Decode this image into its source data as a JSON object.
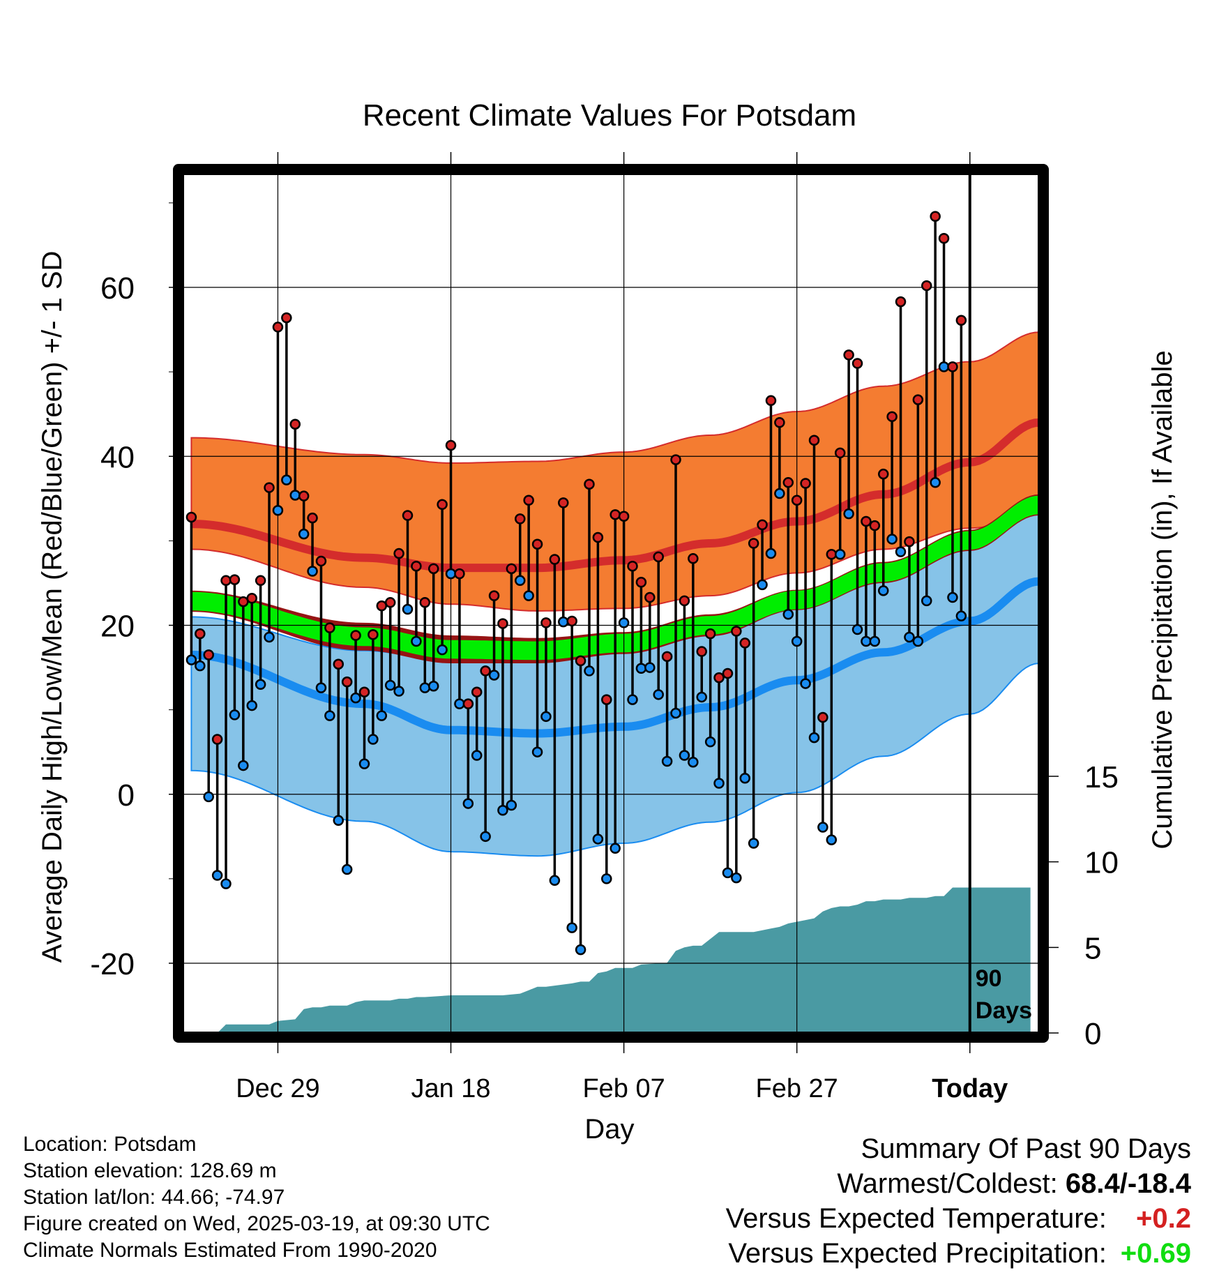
{
  "title": "Recent Climate Values For Potsdam",
  "y_left_label": "Average Daily High/Low/Mean (Red/Blue/Green) +/- 1 SD",
  "y_right_label": "Cumulative Precipitation (in), If Available",
  "x_label": "Day",
  "today_marker_label_1": "90",
  "today_marker_label_2": "Days",
  "footer": {
    "location": "Location: Potsdam",
    "elevation": "Station elevation: 128.69 m",
    "latlon": "Station lat/lon: 44.66; -74.97",
    "created": "Figure created on Wed, 2025-03-19, at 09:30 UTC",
    "normals": "Climate Normals Estimated From 1990-2020"
  },
  "summary": {
    "heading": "Summary Of Past 90 Days",
    "warmest_coldest_label": "Warmest/Coldest:",
    "warmest_coldest_value": "68.4/-18.4",
    "temp_label": "Versus Expected Temperature:",
    "temp_value": "+0.2",
    "precip_label": "Versus Expected Precipitation:",
    "precip_value": "+0.69"
  },
  "colors": {
    "high_band": "#f47c31",
    "high_line": "#d42c2c",
    "mean_band": "#961414",
    "mean_line": "#00ee00",
    "low_band": "#86c3e8",
    "low_line": "#1a8cf0",
    "precip": "#4a9aa3",
    "high_marker": "#d42424",
    "low_marker": "#1a8cf0",
    "temp_delta": "#d42020",
    "precip_delta": "#11dd11"
  },
  "chart_data": {
    "type": "line",
    "x_ticks": [
      {
        "day": 10,
        "label": "Dec 29"
      },
      {
        "day": 30,
        "label": "Jan 18"
      },
      {
        "day": 50,
        "label": "Feb 07"
      },
      {
        "day": 70,
        "label": "Feb 27"
      },
      {
        "day": 90,
        "label": "Today"
      }
    ],
    "xlim": [
      -1,
      98
    ],
    "ylim_left": [
      -28,
      74
    ],
    "y_ticks_left": [
      -20,
      0,
      20,
      40,
      60
    ],
    "ylim_right": [
      0,
      15
    ],
    "y_ticks_right": [
      0,
      5,
      10,
      15
    ],
    "today_day": 90,
    "normals": {
      "day": [
        0,
        20,
        30,
        40,
        50,
        60,
        70,
        80,
        90,
        98
      ],
      "high_upper": [
        42.2,
        40.2,
        39.2,
        39.4,
        40.5,
        42.5,
        45.3,
        48.3,
        51.2,
        54.7
      ],
      "high_mean": [
        32.0,
        28.0,
        26.8,
        26.8,
        27.7,
        29.7,
        32.3,
        35.5,
        39.3,
        44.0
      ],
      "high_lower": [
        29.0,
        24.5,
        22.5,
        21.7,
        22.0,
        23.5,
        26.2,
        29.0,
        31.5,
        33.0
      ],
      "mean_upper": [
        24.1,
        20.3,
        18.8,
        18.5,
        19.2,
        21.3,
        24.2,
        27.5,
        31.3,
        35.5
      ],
      "mean_lower": [
        21.6,
        17.0,
        15.5,
        15.5,
        16.6,
        18.7,
        21.8,
        25.0,
        28.8,
        33.0
      ],
      "low_upper": [
        21.0,
        17.0,
        15.8,
        16.3,
        17.8,
        20.2,
        23.5,
        27.0,
        30.8,
        33.8
      ],
      "low_mean": [
        16.5,
        10.7,
        7.6,
        7.2,
        8.0,
        10.3,
        13.5,
        16.8,
        20.5,
        25.2
      ],
      "low_lower": [
        2.8,
        -3.2,
        -6.8,
        -7.3,
        -5.8,
        -3.3,
        0.2,
        4.5,
        9.5,
        15.5
      ]
    },
    "series": [
      {
        "name": "Daily High",
        "x": [
          0,
          1,
          2,
          3,
          4,
          5,
          6,
          7,
          8,
          9,
          10,
          11,
          12,
          13,
          14,
          15,
          16,
          17,
          18,
          19,
          20,
          21,
          22,
          23,
          24,
          25,
          26,
          27,
          28,
          29,
          30,
          31,
          32,
          33,
          34,
          35,
          36,
          37,
          38,
          39,
          40,
          41,
          42,
          43,
          44,
          45,
          46,
          47,
          48,
          49,
          50,
          51,
          52,
          53,
          54,
          55,
          56,
          57,
          58,
          59,
          60,
          61,
          62,
          63,
          64,
          65,
          66,
          67,
          68,
          69,
          70,
          71,
          72,
          73,
          74,
          75,
          76,
          77,
          78,
          79,
          80,
          81,
          82,
          83,
          84,
          85,
          86,
          87,
          88,
          89
        ],
        "values": [
          32.8,
          19.0,
          16.5,
          6.5,
          25.3,
          25.4,
          22.8,
          23.2,
          25.3,
          36.3,
          55.3,
          56.4,
          43.8,
          35.3,
          32.7,
          27.6,
          19.7,
          15.4,
          13.3,
          18.8,
          12.1,
          18.9,
          22.3,
          22.7,
          28.5,
          33.0,
          27.0,
          22.7,
          26.7,
          34.3,
          41.3,
          26.1,
          10.7,
          12.1,
          14.6,
          23.5,
          20.2,
          26.7,
          32.6,
          34.8,
          29.6,
          20.3,
          27.8,
          34.5,
          20.5,
          15.8,
          36.7,
          30.4,
          11.2,
          33.1,
          32.9,
          27.0,
          25.1,
          23.3,
          28.1,
          16.3,
          39.6,
          22.9,
          27.9,
          16.9,
          19.0,
          13.8,
          14.3,
          19.3,
          17.9,
          29.7,
          31.9,
          46.6,
          44.0,
          36.9,
          34.8,
          36.8,
          41.9,
          9.1,
          28.4,
          40.4,
          52.0,
          51.0,
          32.3,
          31.8,
          37.9,
          44.7,
          58.3,
          29.9,
          46.7,
          60.2,
          68.4,
          65.8,
          50.6,
          56.1
        ]
      },
      {
        "name": "Daily Low",
        "x": [
          0,
          1,
          2,
          3,
          4,
          5,
          6,
          7,
          8,
          9,
          10,
          11,
          12,
          13,
          14,
          15,
          16,
          17,
          18,
          19,
          20,
          21,
          22,
          23,
          24,
          25,
          26,
          27,
          28,
          29,
          30,
          31,
          32,
          33,
          34,
          35,
          36,
          37,
          38,
          39,
          40,
          41,
          42,
          43,
          44,
          45,
          46,
          47,
          48,
          49,
          50,
          51,
          52,
          53,
          54,
          55,
          56,
          57,
          58,
          59,
          60,
          61,
          62,
          63,
          64,
          65,
          66,
          67,
          68,
          69,
          70,
          71,
          72,
          73,
          74,
          75,
          76,
          77,
          78,
          79,
          80,
          81,
          82,
          83,
          84,
          85,
          86,
          87,
          88,
          89
        ],
        "values": [
          15.9,
          15.2,
          -0.3,
          -9.6,
          -10.6,
          9.4,
          3.4,
          10.5,
          13.0,
          18.6,
          33.6,
          37.2,
          35.4,
          30.8,
          26.4,
          12.6,
          9.3,
          -3.1,
          -8.9,
          11.4,
          3.6,
          6.5,
          9.3,
          12.9,
          12.2,
          21.9,
          18.1,
          12.6,
          12.8,
          17.1,
          26.1,
          10.7,
          -1.1,
          4.6,
          -5.0,
          14.1,
          -1.9,
          -1.3,
          25.3,
          23.5,
          5.0,
          9.2,
          -10.2,
          20.4,
          -15.8,
          -18.4,
          14.6,
          -5.3,
          -10.0,
          -6.4,
          20.3,
          11.2,
          14.9,
          15.0,
          11.8,
          3.9,
          9.6,
          4.6,
          3.8,
          11.5,
          6.2,
          1.3,
          -9.3,
          -9.9,
          1.9,
          -5.8,
          24.8,
          28.5,
          35.6,
          21.3,
          18.1,
          13.1,
          6.7,
          -3.9,
          -5.4,
          28.4,
          33.2,
          19.5,
          18.1,
          18.1,
          24.1,
          30.2,
          28.7,
          18.6,
          18.1,
          22.9,
          36.9,
          50.6,
          23.3,
          21.1
        ]
      },
      {
        "name": "Cumulative Precipitation",
        "axis": "right",
        "x": [
          0,
          3,
          4,
          9,
          10,
          12,
          13,
          14,
          15,
          16,
          18,
          19,
          20,
          21,
          23,
          24,
          25,
          26,
          27,
          30,
          31,
          35,
          36,
          38,
          39,
          40,
          41,
          44,
          45,
          46,
          47,
          48,
          49,
          50,
          51,
          52,
          55,
          56,
          57,
          58,
          59,
          60,
          61,
          65,
          66,
          67,
          68,
          69,
          70,
          71,
          72,
          73,
          74,
          75,
          76,
          77,
          78,
          79,
          80,
          81,
          82,
          83,
          84,
          85,
          86,
          87,
          88,
          89,
          90,
          97
        ],
        "values": [
          0,
          0,
          0.5,
          0.5,
          0.7,
          0.8,
          1.4,
          1.5,
          1.5,
          1.6,
          1.6,
          1.8,
          1.9,
          1.9,
          1.9,
          2.0,
          2.0,
          2.1,
          2.1,
          2.2,
          2.2,
          2.2,
          2.2,
          2.3,
          2.5,
          2.7,
          2.7,
          2.9,
          3.0,
          3.0,
          3.5,
          3.6,
          3.8,
          3.8,
          3.8,
          4.0,
          4.1,
          4.8,
          5.0,
          5.1,
          5.1,
          5.5,
          5.9,
          5.9,
          6.0,
          6.1,
          6.2,
          6.4,
          6.5,
          6.6,
          6.7,
          7.1,
          7.3,
          7.4,
          7.4,
          7.5,
          7.7,
          7.7,
          7.8,
          7.8,
          7.8,
          7.9,
          7.9,
          7.9,
          8.0,
          8.0,
          8.5,
          8.5,
          8.5,
          8.5
        ]
      }
    ]
  }
}
